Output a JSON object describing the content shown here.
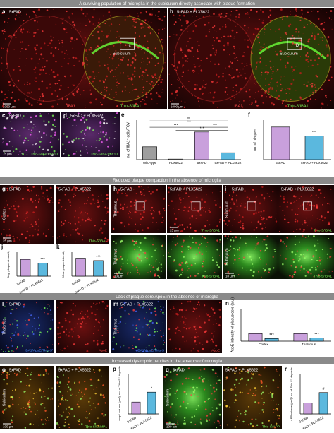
{
  "sections": [
    "A surviving population of microglia in the subiculum directly associate with plaque formation",
    "Reduced plaque compaction in the absence of microglia",
    "Lack of plaque core ApoE in the absence of microglia",
    "Increased dystrophic neurites in the absence of microglia"
  ],
  "tiles": [
    {
      "letter": "a",
      "title": "5xFAD",
      "scale": "1000 µm",
      "stains": [
        "IBA1",
        "Thio-S/IBA1"
      ],
      "region": "Subiculum",
      "inset": "c"
    },
    {
      "letter": "b",
      "title": "5xFAD + PLX5622",
      "scale": "1000 µm",
      "stains": [
        "IBA1",
        "Thio-S/IBA1"
      ],
      "region": "Subiculum",
      "inset": "D"
    },
    {
      "letter": "c",
      "title": "5xFAD",
      "scale": "75 µm",
      "stains": [
        "Thio-S/IBA1/6E10"
      ]
    },
    {
      "letter": "d",
      "title": "5xFAD + PLX5622",
      "stains": [
        "Thio-S/IBA1/6E10"
      ]
    },
    {
      "letter": "g",
      "title": "5xFAD",
      "region": "Cortex",
      "scale": "25 µm"
    },
    {
      "title": "5xFAD + PLX5622",
      "stains": [
        "Thio-S/IBA1"
      ]
    },
    {
      "letter": "h",
      "title": "5xFAD",
      "region": "Thalamus"
    },
    {
      "title": "5xFAD + PLX5622",
      "scale": "25 µm",
      "stains": [
        "Thio-S/IBA1"
      ]
    },
    {
      "region": "Thalamus",
      "scale": "10 µm"
    },
    {
      "stains": [
        "Thio-S/IBA1"
      ]
    },
    {
      "letter": "i",
      "title": "5xFAD",
      "region": "Subiculum"
    },
    {
      "title": "5xFAD + PLX5622",
      "stains": [
        "Thio-S/IBA1"
      ]
    },
    {
      "region": "Subiculum",
      "scale": "10 µm"
    },
    {
      "stains": [
        "Thio-S/IBA1"
      ]
    },
    {
      "letter": "l",
      "title": "5xFAD",
      "region": "Thalamus",
      "stains": [
        "IBA1/ApoE/Thio-S"
      ]
    },
    {
      "stains": [
        "ApoE"
      ]
    },
    {
      "letter": "m",
      "title": "5xFAD + PLX5622",
      "region": "Thalamus",
      "stains": [
        "IBA1/ApoE/Thio-S"
      ]
    },
    {
      "stains": [
        "ApoE"
      ]
    },
    {
      "letter": "o",
      "title": "5xFAD",
      "region": "Subiculum",
      "scale": "100 µm"
    },
    {
      "title": "5xFAD + PLX5622",
      "stains": [
        "Thio-S/LAMP1"
      ]
    },
    {
      "letter": "q",
      "title": "5xFAD",
      "region": "Subiculum",
      "scale": "100 µm"
    },
    {
      "title": "5xFAD + PLX5622",
      "stains": [
        "Thio-S/APP"
      ]
    }
  ],
  "chart_data": [
    {
      "type": "bar",
      "panel": "e",
      "ylabel": "no. of IBA1⁺ cells/FOV",
      "categories": [
        "Wild-type",
        "PLX5622",
        "5xFAD",
        "5xFAD + PLX5622"
      ],
      "values": [
        6.5,
        0.3,
        14,
        3.5
      ],
      "colors": [
        "#9e9e9e",
        "#ffffff",
        "#c9a0dc",
        "#5bb8de"
      ],
      "ylim": [
        0,
        20
      ],
      "annotations": [
        "***",
        "***",
        "***",
        "**",
        "***"
      ]
    },
    {
      "type": "bar",
      "panel": "f",
      "ylabel": "no. of plaques",
      "categories": [
        "5xFAD",
        "5xFAD + PLX5622"
      ],
      "values": [
        165,
        120
      ],
      "colors": [
        "#c9a0dc",
        "#5bb8de"
      ],
      "ylim": [
        0,
        200
      ],
      "annotations": [
        "***"
      ]
    },
    {
      "type": "bar",
      "panel": "j",
      "ylabel": "Avg. plaque circularity",
      "categories": [
        "5xFAD",
        "5xFAD + PLX5622"
      ],
      "values": [
        0.28,
        0.22
      ],
      "colors": [
        "#c9a0dc",
        "#5bb8de"
      ],
      "ylim": [
        0,
        0.4
      ],
      "annotations": [
        "***"
      ]
    },
    {
      "type": "bar",
      "panel": "k",
      "ylabel": "Mean plaque intensity",
      "categories": [
        "5xFAD",
        "5xFAD + PLX5622"
      ],
      "values": [
        150,
        130
      ],
      "colors": [
        "#c9a0dc",
        "#5bb8de"
      ],
      "ylim": [
        0,
        200
      ],
      "annotations": [
        "***"
      ]
    },
    {
      "type": "grouped_bar",
      "panel": "n",
      "ylabel": "ApoE intensity of plaque core (a.u.)",
      "categories": [
        "Cortex",
        "Thalamus"
      ],
      "series": [
        {
          "color": "#c9a0dc",
          "values": [
            35,
            35
          ]
        },
        {
          "color": "#5bb8de",
          "values": [
            12,
            15
          ]
        }
      ],
      "ylim": [
        0,
        150
      ],
      "annotations": [
        "***",
        "***"
      ]
    },
    {
      "type": "bar",
      "panel": "p",
      "ylabel": "Lamp1 volume (µm³)/ no. of Thio-S⁺ deposits",
      "categories": [
        "5xFAD",
        "5xFAD + PLX5622"
      ],
      "values": [
        0.6,
        1.1
      ],
      "colors": [
        "#c9a0dc",
        "#5bb8de"
      ],
      "ylim": [
        0,
        2
      ],
      "annotations": [
        "*"
      ]
    },
    {
      "type": "bar",
      "panel": "r",
      "ylabel": "APP volume (µm³)/ no. of Thio-S⁺ deposits",
      "categories": [
        "5xFAD",
        "5xFAD + PLX5622"
      ],
      "values": [
        14,
        27
      ],
      "colors": [
        "#c9a0dc",
        "#5bb8de"
      ],
      "ylim": [
        0,
        50
      ],
      "annotations": [
        "#"
      ]
    }
  ]
}
